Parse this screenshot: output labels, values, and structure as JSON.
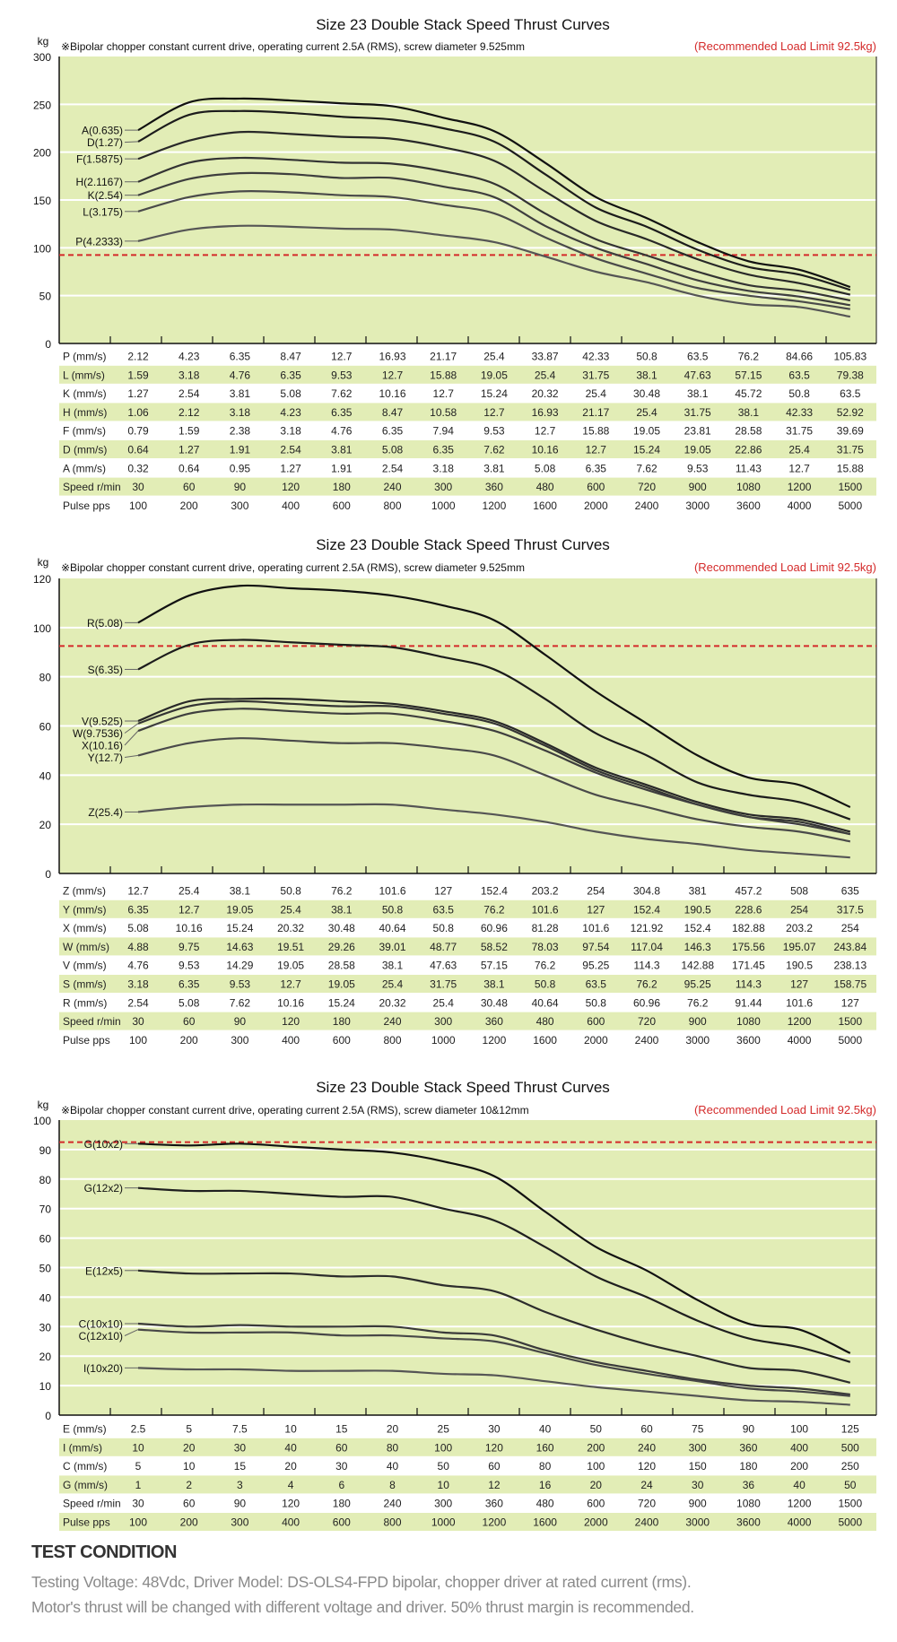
{
  "chart_data": [
    {
      "type": "line",
      "title": "Size 23 Double Stack Speed Thrust Curves",
      "subtitle": "※Bipolar chopper constant current drive, operating current 2.5A (RMS), screw diameter 9.525mm",
      "load_limit_label": "(Recommended Load Limit 92.5kg)",
      "load_limit": 92.5,
      "ylabel": "kg",
      "ylim": [
        0,
        300
      ],
      "yticks": [
        0,
        50,
        100,
        150,
        200,
        250,
        300
      ],
      "grid": true,
      "series": [
        {
          "name": "A(0.635)",
          "values": [
            223,
            252,
            256,
            254,
            251,
            248,
            236,
            222,
            189,
            153,
            131,
            106,
            86,
            77,
            59
          ]
        },
        {
          "name": "D(1.27)",
          "values": [
            211,
            239,
            243,
            241,
            237,
            234,
            225,
            211,
            177,
            142,
            122,
            98,
            80,
            72,
            56
          ]
        },
        {
          "name": "F(1.5875)",
          "values": [
            193,
            212,
            221,
            219,
            216,
            214,
            205,
            191,
            159,
            128,
            109,
            88,
            72,
            63,
            51
          ]
        },
        {
          "name": "H(2.1167)",
          "values": [
            169,
            189,
            194,
            192,
            189,
            188,
            180,
            167,
            136,
            109,
            92,
            75,
            61,
            55,
            45
          ]
        },
        {
          "name": "K(2.54)",
          "values": [
            155,
            172,
            178,
            177,
            173,
            173,
            164,
            153,
            123,
            100,
            83,
            66,
            55,
            49,
            40
          ]
        },
        {
          "name": "L(3.175)",
          "values": [
            138,
            153,
            159,
            158,
            155,
            153,
            145,
            136,
            111,
            89,
            73,
            58,
            50,
            44,
            36
          ]
        },
        {
          "name": "P(4.2333)",
          "values": [
            107,
            119,
            123,
            122,
            120,
            119,
            113,
            106,
            91,
            75,
            64,
            50,
            41,
            38,
            28
          ]
        }
      ],
      "table": {
        "rows": [
          {
            "label": "P (mm/s)",
            "values": [
              "2.12",
              "4.23",
              "6.35",
              "8.47",
              "12.7",
              "16.93",
              "21.17",
              "25.4",
              "33.87",
              "42.33",
              "50.8",
              "63.5",
              "76.2",
              "84.66",
              "105.83"
            ]
          },
          {
            "label": "L (mm/s)",
            "values": [
              "1.59",
              "3.18",
              "4.76",
              "6.35",
              "9.53",
              "12.7",
              "15.88",
              "19.05",
              "25.4",
              "31.75",
              "38.1",
              "47.63",
              "57.15",
              "63.5",
              "79.38"
            ]
          },
          {
            "label": "K (mm/s)",
            "values": [
              "1.27",
              "2.54",
              "3.81",
              "5.08",
              "7.62",
              "10.16",
              "12.7",
              "15.24",
              "20.32",
              "25.4",
              "30.48",
              "38.1",
              "45.72",
              "50.8",
              "63.5"
            ]
          },
          {
            "label": "H (mm/s)",
            "values": [
              "1.06",
              "2.12",
              "3.18",
              "4.23",
              "6.35",
              "8.47",
              "10.58",
              "12.7",
              "16.93",
              "21.17",
              "25.4",
              "31.75",
              "38.1",
              "42.33",
              "52.92"
            ]
          },
          {
            "label": "F (mm/s)",
            "values": [
              "0.79",
              "1.59",
              "2.38",
              "3.18",
              "4.76",
              "6.35",
              "7.94",
              "9.53",
              "12.7",
              "15.88",
              "19.05",
              "23.81",
              "28.58",
              "31.75",
              "39.69"
            ]
          },
          {
            "label": "D (mm/s)",
            "values": [
              "0.64",
              "1.27",
              "1.91",
              "2.54",
              "3.81",
              "5.08",
              "6.35",
              "7.62",
              "10.16",
              "12.7",
              "15.24",
              "19.05",
              "22.86",
              "25.4",
              "31.75"
            ]
          },
          {
            "label": "A (mm/s)",
            "values": [
              "0.32",
              "0.64",
              "0.95",
              "1.27",
              "1.91",
              "2.54",
              "3.18",
              "3.81",
              "5.08",
              "6.35",
              "7.62",
              "9.53",
              "11.43",
              "12.7",
              "15.88"
            ]
          },
          {
            "label": "Speed r/min",
            "values": [
              "30",
              "60",
              "90",
              "120",
              "180",
              "240",
              "300",
              "360",
              "480",
              "600",
              "720",
              "900",
              "1080",
              "1200",
              "1500"
            ]
          },
          {
            "label": "Pulse  pps",
            "values": [
              "100",
              "200",
              "300",
              "400",
              "600",
              "800",
              "1000",
              "1200",
              "1600",
              "2000",
              "2400",
              "3000",
              "3600",
              "4000",
              "5000"
            ]
          }
        ]
      }
    },
    {
      "type": "line",
      "title": "Size 23 Double Stack Speed Thrust Curves",
      "subtitle": "※Bipolar chopper constant current drive, operating current 2.5A (RMS), screw diameter 9.525mm",
      "load_limit_label": "(Recommended Load Limit 92.5kg)",
      "load_limit": 92.5,
      "ylabel": "kg",
      "ylim": [
        0,
        120
      ],
      "yticks": [
        0,
        20,
        40,
        60,
        80,
        100,
        120
      ],
      "grid": true,
      "series": [
        {
          "name": "R(5.08)",
          "values": [
            102,
            113,
            117,
            116,
            115,
            113,
            109,
            103,
            89,
            74,
            61,
            48,
            39,
            36,
            27
          ]
        },
        {
          "name": "S(6.35)",
          "values": [
            83,
            93,
            95,
            94,
            93,
            92,
            88,
            83,
            71,
            57,
            48,
            37,
            32,
            29,
            22
          ]
        },
        {
          "name": "V(9.525)",
          "values": [
            62,
            70,
            71,
            71,
            70,
            69,
            66,
            62,
            53,
            43,
            36,
            29,
            24,
            22,
            17
          ]
        },
        {
          "name": "W(9.7536)",
          "values": [
            61,
            68,
            70,
            69,
            68,
            68,
            65,
            61,
            52,
            42,
            35,
            28,
            23,
            21,
            16
          ]
        },
        {
          "name": "X(10.16)",
          "values": [
            58,
            65,
            67,
            66,
            65,
            65,
            62,
            58,
            50,
            41,
            34,
            28,
            23,
            20,
            16
          ]
        },
        {
          "name": "Y(12.7)",
          "values": [
            48,
            53,
            55,
            54,
            53,
            53,
            51,
            48,
            40,
            32,
            27,
            22,
            19,
            17,
            13
          ]
        },
        {
          "name": "Z(25.4)",
          "values": [
            25,
            27,
            28,
            28,
            28,
            28,
            26,
            24,
            21,
            17,
            14,
            12,
            9.5,
            8,
            6.5
          ]
        }
      ],
      "table": {
        "rows": [
          {
            "label": "Z (mm/s)",
            "values": [
              "12.7",
              "25.4",
              "38.1",
              "50.8",
              "76.2",
              "101.6",
              "127",
              "152.4",
              "203.2",
              "254",
              "304.8",
              "381",
              "457.2",
              "508",
              "635"
            ]
          },
          {
            "label": "Y (mm/s)",
            "values": [
              "6.35",
              "12.7",
              "19.05",
              "25.4",
              "38.1",
              "50.8",
              "63.5",
              "76.2",
              "101.6",
              "127",
              "152.4",
              "190.5",
              "228.6",
              "254",
              "317.5"
            ]
          },
          {
            "label": "X (mm/s)",
            "values": [
              "5.08",
              "10.16",
              "15.24",
              "20.32",
              "30.48",
              "40.64",
              "50.8",
              "60.96",
              "81.28",
              "101.6",
              "121.92",
              "152.4",
              "182.88",
              "203.2",
              "254"
            ]
          },
          {
            "label": "W (mm/s)",
            "values": [
              "4.88",
              "9.75",
              "14.63",
              "19.51",
              "29.26",
              "39.01",
              "48.77",
              "58.52",
              "78.03",
              "97.54",
              "117.04",
              "146.3",
              "175.56",
              "195.07",
              "243.84"
            ]
          },
          {
            "label": "V (mm/s)",
            "values": [
              "4.76",
              "9.53",
              "14.29",
              "19.05",
              "28.58",
              "38.1",
              "47.63",
              "57.15",
              "76.2",
              "95.25",
              "114.3",
              "142.88",
              "171.45",
              "190.5",
              "238.13"
            ]
          },
          {
            "label": "S (mm/s)",
            "values": [
              "3.18",
              "6.35",
              "9.53",
              "12.7",
              "19.05",
              "25.4",
              "31.75",
              "38.1",
              "50.8",
              "63.5",
              "76.2",
              "95.25",
              "114.3",
              "127",
              "158.75"
            ]
          },
          {
            "label": "R (mm/s)",
            "values": [
              "2.54",
              "5.08",
              "7.62",
              "10.16",
              "15.24",
              "20.32",
              "25.4",
              "30.48",
              "40.64",
              "50.8",
              "60.96",
              "76.2",
              "91.44",
              "101.6",
              "127"
            ]
          },
          {
            "label": "Speed r/min",
            "values": [
              "30",
              "60",
              "90",
              "120",
              "180",
              "240",
              "300",
              "360",
              "480",
              "600",
              "720",
              "900",
              "1080",
              "1200",
              "1500"
            ]
          },
          {
            "label": "Pulse  pps",
            "values": [
              "100",
              "200",
              "300",
              "400",
              "600",
              "800",
              "1000",
              "1200",
              "1600",
              "2000",
              "2400",
              "3000",
              "3600",
              "4000",
              "5000"
            ]
          }
        ]
      }
    },
    {
      "type": "line",
      "title": "Size 23 Double Stack Speed Thrust Curves",
      "subtitle": "※Bipolar chopper constant current drive, operating current 2.5A (RMS), screw diameter 10&12mm",
      "load_limit_label": "(Recommended Load Limit 92.5kg)",
      "load_limit": 92.5,
      "ylabel": "kg",
      "ylim": [
        0,
        100
      ],
      "yticks": [
        0,
        10,
        20,
        30,
        40,
        50,
        60,
        70,
        80,
        90,
        100
      ],
      "grid": true,
      "series": [
        {
          "name": "G(10x2)",
          "values": [
            92,
            91.4,
            92,
            91,
            90,
            89,
            86,
            81,
            69,
            57,
            49,
            39,
            31,
            29,
            21
          ]
        },
        {
          "name": "G(12x2)",
          "values": [
            77,
            76,
            76,
            75,
            74,
            74,
            70,
            66,
            57,
            47,
            40,
            32,
            26,
            23,
            18
          ]
        },
        {
          "name": "E(12x5)",
          "values": [
            49,
            48,
            48,
            48,
            47,
            47,
            44,
            42,
            35,
            29,
            24,
            20,
            16,
            15,
            11
          ]
        },
        {
          "name": "C(10x10)",
          "values": [
            31,
            30,
            30.5,
            30,
            30,
            30,
            28,
            27,
            22,
            18,
            15,
            12,
            10,
            9,
            7
          ]
        },
        {
          "name": "C(12x10)",
          "values": [
            29,
            28,
            28,
            28,
            27,
            27,
            26,
            25,
            21,
            17,
            14,
            11.5,
            9,
            8,
            6.5
          ]
        },
        {
          "name": "I(10x20)",
          "values": [
            16,
            15.5,
            15.5,
            15,
            15,
            15,
            14,
            13.5,
            11.5,
            9.5,
            8,
            6.5,
            5,
            4.5,
            3.5
          ]
        }
      ],
      "table": {
        "rows": [
          {
            "label": "E (mm/s)",
            "values": [
              "2.5",
              "5",
              "7.5",
              "10",
              "15",
              "20",
              "25",
              "30",
              "40",
              "50",
              "60",
              "75",
              "90",
              "100",
              "125"
            ]
          },
          {
            "label": "I (mm/s)",
            "values": [
              "10",
              "20",
              "30",
              "40",
              "60",
              "80",
              "100",
              "120",
              "160",
              "200",
              "240",
              "300",
              "360",
              "400",
              "500"
            ]
          },
          {
            "label": "C (mm/s)",
            "values": [
              "5",
              "10",
              "15",
              "20",
              "30",
              "40",
              "50",
              "60",
              "80",
              "100",
              "120",
              "150",
              "180",
              "200",
              "250"
            ]
          },
          {
            "label": "G (mm/s)",
            "values": [
              "1",
              "2",
              "3",
              "4",
              "6",
              "8",
              "10",
              "12",
              "16",
              "20",
              "24",
              "30",
              "36",
              "40",
              "50"
            ]
          },
          {
            "label": "Speed r/min",
            "values": [
              "30",
              "60",
              "90",
              "120",
              "180",
              "240",
              "300",
              "360",
              "480",
              "600",
              "720",
              "900",
              "1080",
              "1200",
              "1500"
            ]
          },
          {
            "label": "Pulse  pps",
            "values": [
              "100",
              "200",
              "300",
              "400",
              "600",
              "800",
              "1000",
              "1200",
              "1600",
              "2000",
              "2400",
              "3000",
              "3600",
              "4000",
              "5000"
            ]
          }
        ]
      }
    }
  ],
  "colors": {
    "plot_background": "#e2edb6",
    "row_stripe": "#e2edb6",
    "load_limit": "#d42a2a",
    "grid": "#ffffff"
  },
  "test_condition": {
    "heading": "TEST CONDITION",
    "line1": "Testing Voltage: 48Vdc, Driver Model: DS-OLS4-FPD bipolar, chopper driver at rated current (rms).",
    "line2": "Motor's thrust will be changed with different voltage and driver. 50% thrust margin is recommended."
  }
}
